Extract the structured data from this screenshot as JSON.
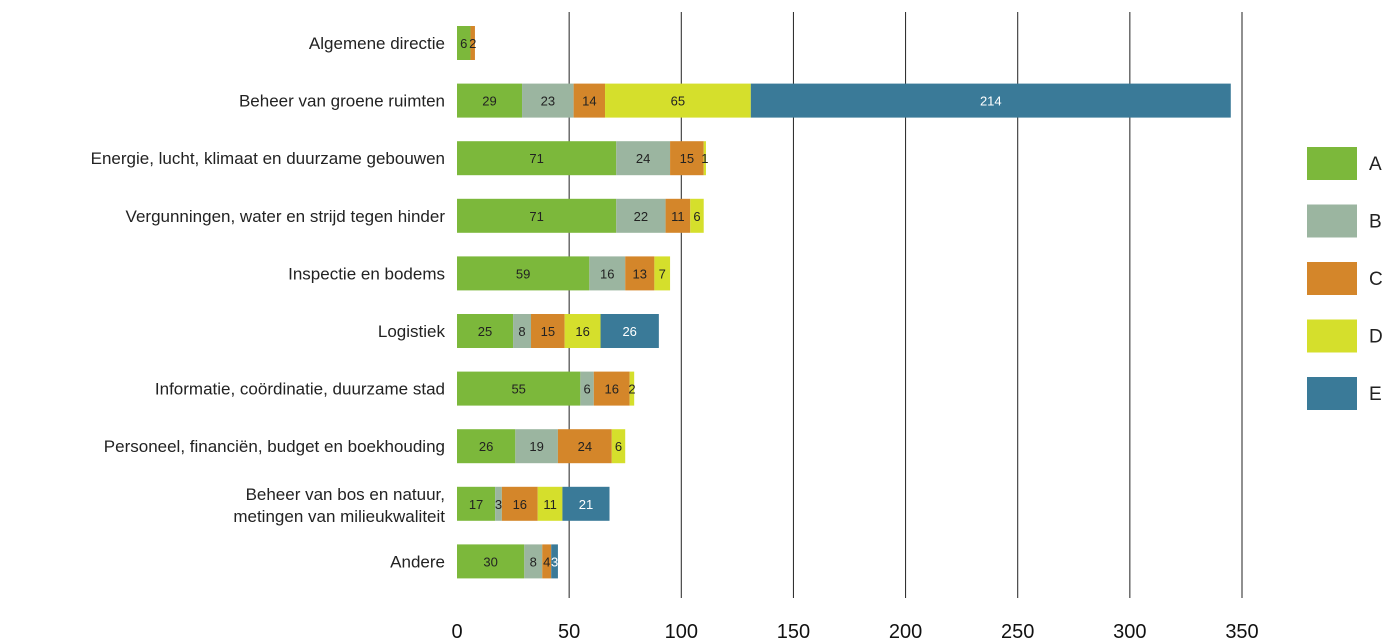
{
  "chart_data": {
    "type": "bar",
    "orientation": "horizontal",
    "stacked": true,
    "title": "",
    "xlabel": "",
    "ylabel": "",
    "xlim": [
      0,
      350
    ],
    "xticks": [
      0,
      50,
      100,
      150,
      200,
      250,
      300,
      350
    ],
    "grid": "vertical",
    "legend_position": "right",
    "categories": [
      [
        "Algemene directie"
      ],
      [
        "Beheer van groene ruimten"
      ],
      [
        "Energie, lucht, klimaat en duurzame gebouwen"
      ],
      [
        "Vergunningen, water en strijd tegen hinder"
      ],
      [
        "Inspectie en bodems"
      ],
      [
        "Logistiek"
      ],
      [
        "Informatie, coördinatie, duurzame stad"
      ],
      [
        "Personeel, financiën, budget en boekhouding"
      ],
      [
        "Beheer van bos en natuur,",
        "metingen van milieukwaliteit"
      ],
      [
        "Andere"
      ]
    ],
    "series": [
      {
        "name": "A",
        "color": "#7cb83b",
        "text_color": "#222222",
        "values": [
          6,
          29,
          71,
          71,
          59,
          25,
          55,
          26,
          17,
          30
        ]
      },
      {
        "name": "B",
        "color": "#9bb5a0",
        "text_color": "#222222",
        "values": [
          0,
          23,
          24,
          22,
          16,
          8,
          6,
          19,
          3,
          8
        ]
      },
      {
        "name": "C",
        "color": "#d4862a",
        "text_color": "#222222",
        "values": [
          2,
          14,
          15,
          11,
          13,
          15,
          16,
          24,
          16,
          4
        ]
      },
      {
        "name": "D",
        "color": "#d5df2c",
        "text_color": "#222222",
        "values": [
          0,
          65,
          1,
          6,
          7,
          16,
          2,
          6,
          11,
          0
        ]
      },
      {
        "name": "E",
        "color": "#3a7a98",
        "text_color": "#ffffff",
        "values": [
          0,
          214,
          0,
          0,
          0,
          26,
          0,
          0,
          21,
          3
        ]
      }
    ]
  }
}
